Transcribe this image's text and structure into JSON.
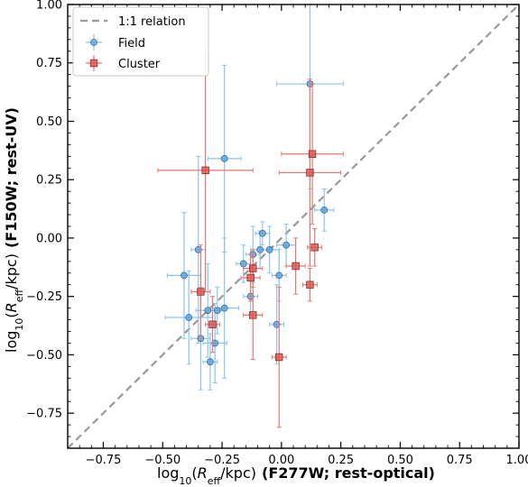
{
  "chart_data": {
    "type": "scatter",
    "xlabel": {
      "prefix": "log",
      "sub": "10",
      "open": "(",
      "R": "R",
      "rsub": "eff",
      "rest": "/kpc)",
      "suffix": "(F277W; rest-optical)"
    },
    "ylabel": {
      "prefix": "log",
      "sub": "10",
      "open": "(",
      "R": "R",
      "rsub": "eff",
      "rest": "/kpc)",
      "suffix": "(F150W; rest-UV)"
    },
    "xlim": [
      -0.9,
      1.0
    ],
    "ylim": [
      -0.9,
      1.0
    ],
    "xticks": [
      -0.75,
      -0.5,
      -0.25,
      0.0,
      0.25,
      0.5,
      0.75,
      1.0
    ],
    "yticks": [
      -0.75,
      -0.5,
      -0.25,
      0.0,
      0.25,
      0.5,
      0.75,
      1.0
    ],
    "xtick_labels": [
      "−0.75",
      "−0.50",
      "−0.25",
      "0.00",
      "0.25",
      "0.50",
      "0.75",
      "1.00"
    ],
    "ytick_labels": [
      "−0.75",
      "−0.50",
      "−0.25",
      "0.00",
      "0.25",
      "0.50",
      "0.75",
      "1.00"
    ],
    "grid": false,
    "legend_position": "top-left",
    "reference_line": {
      "name": "1:1 relation",
      "color": "#999999",
      "style": "dashed"
    },
    "series": [
      {
        "name": "Field",
        "marker": "circle",
        "color": "#5b9bd5",
        "errcolor": "#8cc4ec",
        "points": [
          {
            "x": -0.41,
            "y": -0.16,
            "xerr": 0.07,
            "yerr": 0.27
          },
          {
            "x": -0.39,
            "y": -0.34,
            "xerr": 0.1,
            "yerr": 0.2
          },
          {
            "x": -0.35,
            "y": -0.05,
            "xerr": 0.03,
            "yerr": 0.4
          },
          {
            "x": -0.34,
            "y": -0.43,
            "xerr": 0.04,
            "yerr": 0.22
          },
          {
            "x": -0.31,
            "y": -0.31,
            "xerr": 0.05,
            "yerr": 0.2
          },
          {
            "x": -0.3,
            "y": -0.53,
            "xerr": 0.03,
            "yerr": 0.12
          },
          {
            "x": -0.28,
            "y": -0.45,
            "xerr": 0.05,
            "yerr": 0.17
          },
          {
            "x": -0.27,
            "y": -0.31,
            "xerr": 0.03,
            "yerr": 0.1
          },
          {
            "x": -0.24,
            "y": -0.3,
            "xerr": 0.06,
            "yerr": 0.3
          },
          {
            "x": -0.24,
            "y": 0.34,
            "xerr": 0.07,
            "yerr": 0.4
          },
          {
            "x": -0.16,
            "y": -0.11,
            "xerr": 0.03,
            "yerr": 0.08
          },
          {
            "x": -0.13,
            "y": -0.25,
            "xerr": 0.03,
            "yerr": 0.08
          },
          {
            "x": -0.12,
            "y": -0.07,
            "xerr": 0.03,
            "yerr": 0.12
          },
          {
            "x": -0.09,
            "y": -0.05,
            "xerr": 0.04,
            "yerr": 0.08
          },
          {
            "x": -0.08,
            "y": 0.02,
            "xerr": 0.03,
            "yerr": 0.05
          },
          {
            "x": -0.05,
            "y": -0.05,
            "xerr": 0.04,
            "yerr": 0.1
          },
          {
            "x": -0.02,
            "y": -0.37,
            "xerr": 0.03,
            "yerr": 0.17
          },
          {
            "x": -0.01,
            "y": -0.16,
            "xerr": 0.03,
            "yerr": 0.11
          },
          {
            "x": 0.02,
            "y": -0.03,
            "xerr": 0.04,
            "yerr": 0.09
          },
          {
            "x": 0.12,
            "y": 0.66,
            "xerr": 0.14,
            "yerr": 0.45
          },
          {
            "x": 0.18,
            "y": 0.12,
            "xerr": 0.04,
            "yerr": 0.09
          }
        ]
      },
      {
        "name": "Cluster",
        "marker": "square",
        "color": "#d9534f",
        "errcolor": "#e8766f",
        "points": [
          {
            "x": -0.32,
            "y": 0.29,
            "xerr": 0.2,
            "yerr": 0.52
          },
          {
            "x": -0.34,
            "y": -0.23,
            "xerr": 0.04,
            "yerr": 0.2
          },
          {
            "x": -0.29,
            "y": -0.37,
            "xerr": 0.03,
            "yerr": 0.12
          },
          {
            "x": -0.13,
            "y": -0.17,
            "xerr": 0.04,
            "yerr": 0.1
          },
          {
            "x": -0.12,
            "y": -0.13,
            "xerr": 0.04,
            "yerr": 0.08
          },
          {
            "x": -0.12,
            "y": -0.33,
            "xerr": 0.04,
            "yerr": 0.19
          },
          {
            "x": -0.01,
            "y": -0.51,
            "xerr": 0.03,
            "yerr": 0.3
          },
          {
            "x": 0.06,
            "y": -0.12,
            "xerr": 0.04,
            "yerr": 0.12
          },
          {
            "x": 0.12,
            "y": 0.28,
            "xerr": 0.13,
            "yerr": 0.4
          },
          {
            "x": 0.13,
            "y": 0.36,
            "xerr": 0.13,
            "yerr": 0.3
          },
          {
            "x": 0.14,
            "y": -0.04,
            "xerr": 0.03,
            "yerr": 0.08
          },
          {
            "x": 0.12,
            "y": -0.2,
            "xerr": 0.03,
            "yerr": 0.07
          }
        ]
      }
    ]
  }
}
